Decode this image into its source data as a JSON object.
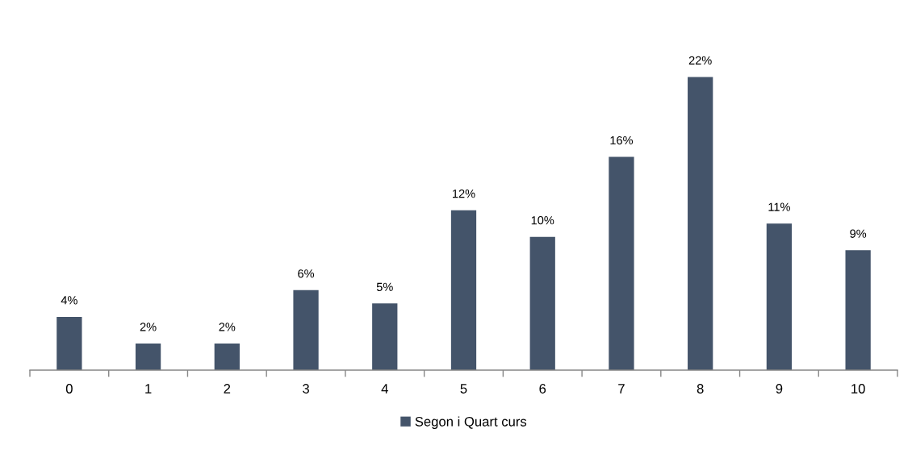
{
  "chart_data": {
    "type": "bar",
    "categories": [
      "0",
      "1",
      "2",
      "3",
      "4",
      "5",
      "6",
      "7",
      "8",
      "9",
      "10"
    ],
    "series": [
      {
        "name": "Segon i Quart curs",
        "color": "#44546a",
        "values": [
          4,
          2,
          2,
          6,
          5,
          12,
          10,
          16,
          22,
          11,
          9
        ],
        "value_labels": [
          "4%",
          "2%",
          "2%",
          "6%",
          "5%",
          "12%",
          "10%",
          "16%",
          "22%",
          "11%",
          "9%"
        ]
      }
    ],
    "legend": "bottom",
    "tick_labels": "x"
  }
}
